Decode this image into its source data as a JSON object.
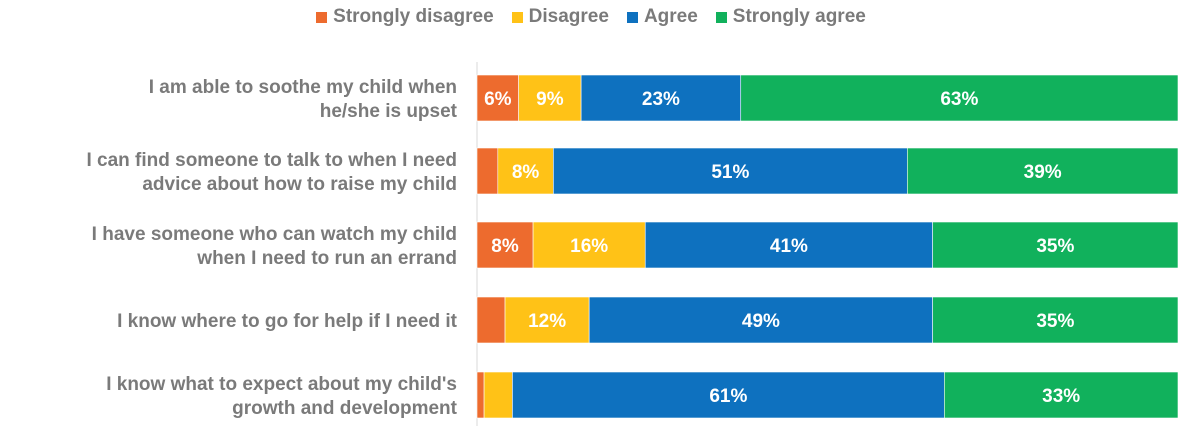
{
  "chart_data": {
    "type": "bar",
    "orientation": "horizontal",
    "stacked": true,
    "normalized": true,
    "categories": [
      [
        "I am able to soothe my child when",
        "he/she is upset"
      ],
      [
        "I can find someone to talk to when I need",
        "advice about how to raise my child"
      ],
      [
        "I have someone who can watch my child",
        "when I need to run an errand"
      ],
      [
        "I know where to go for help if I need it"
      ],
      [
        "I know what to expect about my child's",
        "growth and development"
      ]
    ],
    "series": [
      {
        "name": "Strongly disagree",
        "color": "#ED6B2E",
        "values": [
          6,
          3,
          8,
          4,
          1
        ],
        "labels": [
          "6%",
          "",
          "8%",
          "",
          ""
        ]
      },
      {
        "name": "Disagree",
        "color": "#FFC217",
        "values": [
          9,
          8,
          16,
          12,
          4
        ],
        "labels": [
          "9%",
          "8%",
          "16%",
          "12%",
          ""
        ]
      },
      {
        "name": "Agree",
        "color": "#0E71BF",
        "values": [
          23,
          51,
          41,
          49,
          61
        ],
        "labels": [
          "23%",
          "51%",
          "41%",
          "49%",
          "61%"
        ]
      },
      {
        "name": "Strongly agree",
        "color": "#11B15C",
        "values": [
          63,
          39,
          35,
          35,
          33
        ],
        "labels": [
          "63%",
          "39%",
          "35%",
          "35%",
          "33%"
        ]
      }
    ],
    "xlim": [
      0,
      100
    ],
    "legend_position": "top-center",
    "grid": false,
    "label_color": "#7a7a7a",
    "value_label_color": "#ffffff"
  }
}
